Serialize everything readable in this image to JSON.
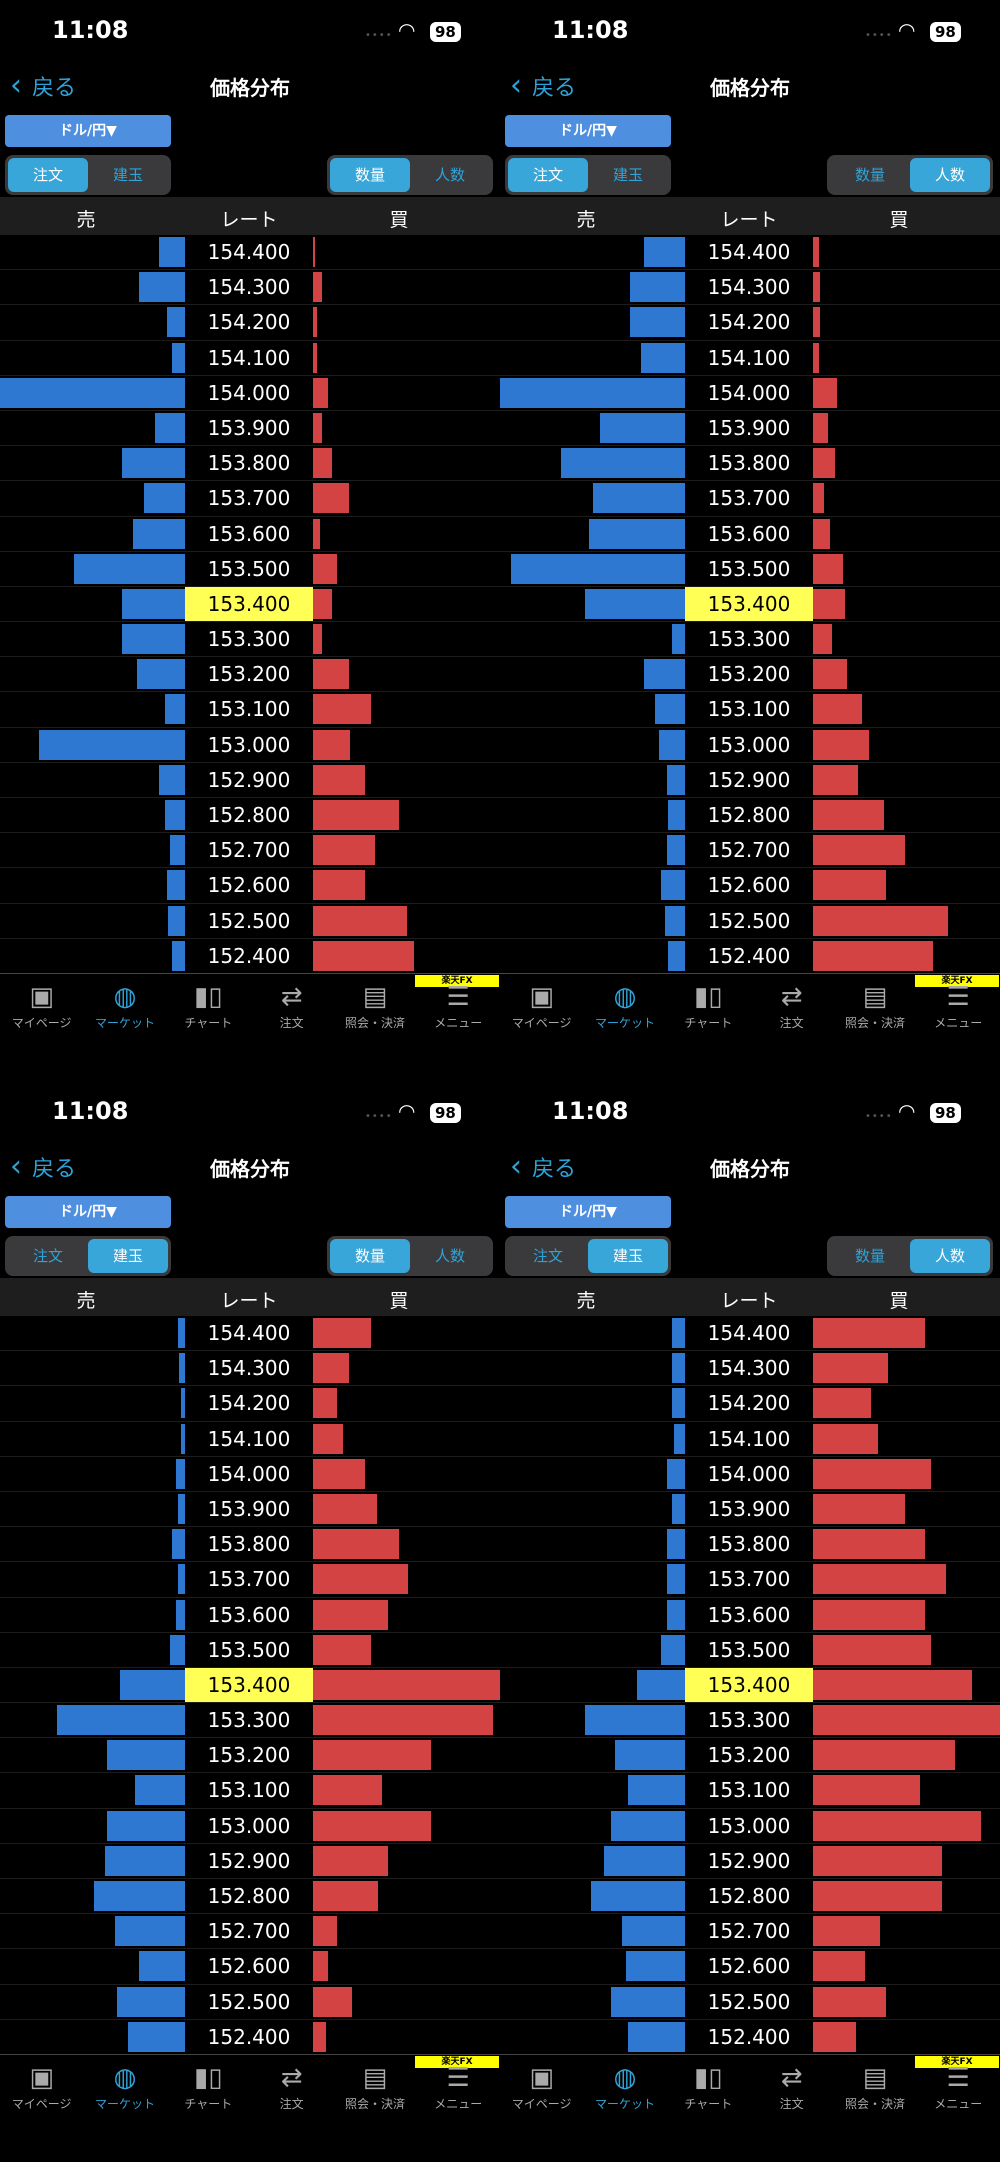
{
  "status": {
    "time": "11:08",
    "battery": "98"
  },
  "nav": {
    "back": "戻る",
    "title": "価格分布"
  },
  "currency": "ドル/円▼",
  "seg_type": [
    "注文",
    "建玉"
  ],
  "seg_metric": [
    "数量",
    "人数"
  ],
  "columns": [
    "売",
    "レート",
    "買"
  ],
  "rates": [
    "154.400",
    "154.300",
    "154.200",
    "154.100",
    "154.000",
    "153.900",
    "153.800",
    "153.700",
    "153.600",
    "153.500",
    "153.400",
    "153.300",
    "153.200",
    "153.100",
    "153.000",
    "152.900",
    "152.800",
    "152.700",
    "152.600",
    "152.500",
    "152.400"
  ],
  "highlight_rate": "153.400",
  "brand_badge": "楽天FX",
  "tabbar": [
    {
      "label": "マイページ",
      "icon": "bookmark-icon"
    },
    {
      "label": "マーケット",
      "icon": "globe-icon"
    },
    {
      "label": "チャート",
      "icon": "candlestick-icon"
    },
    {
      "label": "注文",
      "icon": "order-icon"
    },
    {
      "label": "照会・決済",
      "icon": "document-icon"
    },
    {
      "label": "メニュー",
      "icon": "menu-icon"
    }
  ],
  "active_tab": 1,
  "colors": {
    "sell": "#2e78d2",
    "buy": "#d34343",
    "highlight": "#ffff55",
    "accent": "#2fa3d9"
  },
  "bar_scale_note_percent_of_max": true,
  "panels": [
    {
      "type_active": 0,
      "metric_active": 0,
      "sell": [
        14,
        25,
        10,
        7,
        100,
        16,
        34,
        22,
        28,
        60,
        34,
        34,
        26,
        11,
        79,
        14,
        11,
        8,
        10,
        9,
        7
      ],
      "buy": [
        1,
        5,
        2,
        2,
        8,
        5,
        10,
        19,
        4,
        13,
        10,
        5,
        19,
        31,
        20,
        28,
        46,
        33,
        28,
        50,
        54
      ]
    },
    {
      "type_active": 0,
      "metric_active": 1,
      "sell": [
        22,
        30,
        30,
        24,
        100,
        46,
        67,
        50,
        52,
        94,
        54,
        7,
        22,
        16,
        14,
        10,
        9,
        10,
        13,
        11,
        9
      ],
      "buy": [
        3,
        4,
        4,
        3,
        13,
        8,
        12,
        6,
        9,
        16,
        17,
        10,
        18,
        26,
        30,
        24,
        38,
        49,
        39,
        72,
        64
      ]
    },
    {
      "type_active": 1,
      "metric_active": 0,
      "sell": [
        4,
        3,
        2,
        2,
        5,
        4,
        7,
        4,
        5,
        8,
        35,
        69,
        42,
        27,
        42,
        43,
        49,
        38,
        25,
        37,
        31
      ],
      "buy": [
        31,
        19,
        13,
        16,
        28,
        34,
        46,
        51,
        40,
        31,
        100,
        96,
        63,
        37,
        63,
        40,
        35,
        13,
        8,
        21,
        7
      ]
    },
    {
      "type_active": 1,
      "metric_active": 1,
      "sell": [
        7,
        7,
        7,
        6,
        10,
        7,
        10,
        10,
        10,
        13,
        26,
        54,
        38,
        31,
        40,
        44,
        51,
        34,
        32,
        40,
        31
      ],
      "buy": [
        60,
        40,
        31,
        35,
        63,
        49,
        60,
        71,
        60,
        63,
        85,
        100,
        76,
        57,
        90,
        69,
        69,
        36,
        28,
        39,
        23
      ]
    }
  ]
}
